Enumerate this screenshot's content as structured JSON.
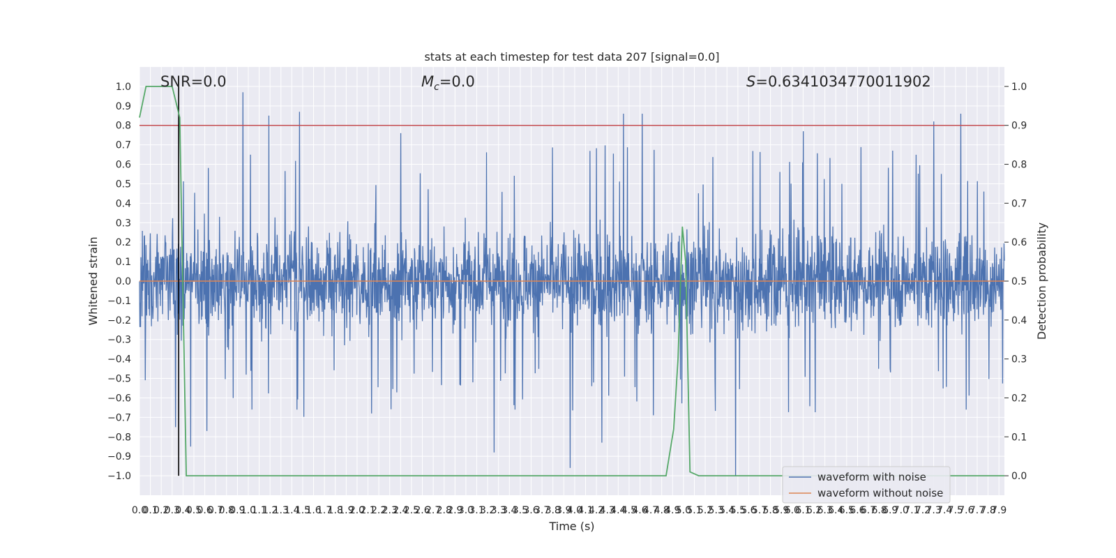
{
  "chart_data": {
    "type": "line",
    "title": "stats at each timestep for test data 207 [signal=0.0]",
    "xlabel": "Time (s)",
    "ylabel": "Whitened strain",
    "y2label": "Detection probability",
    "xlim": [
      0.0,
      7.95
    ],
    "ylim": [
      -1.1,
      1.1
    ],
    "y2lim": [
      -0.05,
      1.05
    ],
    "grid": true,
    "legend_placement": "lower-right",
    "x_ticks": [
      "0.0",
      "0.1",
      "0.2",
      "0.3",
      "0.4",
      "0.5",
      "0.6",
      "0.7",
      "0.8",
      "0.9",
      "1.0",
      "1.1",
      "1.2",
      "1.3",
      "1.4",
      "1.5",
      "1.6",
      "1.7",
      "1.8",
      "1.9",
      "2.0",
      "2.1",
      "2.2",
      "2.3",
      "2.4",
      "2.5",
      "2.6",
      "2.7",
      "2.8",
      "2.9",
      "3.0",
      "3.1",
      "3.2",
      "3.3",
      "3.4",
      "3.5",
      "3.6",
      "3.7",
      "3.8",
      "3.9",
      "4.0",
      "4.1",
      "4.2",
      "4.3",
      "4.4",
      "4.5",
      "4.6",
      "4.7",
      "4.8",
      "4.9",
      "5.0",
      "5.1",
      "5.2",
      "5.3",
      "5.4",
      "5.5",
      "5.6",
      "5.7",
      "5.8",
      "5.9",
      "6.0",
      "6.1",
      "6.2",
      "6.3",
      "6.4",
      "6.5",
      "6.6",
      "6.7",
      "6.8",
      "6.9",
      "7.0",
      "7.1",
      "7.2",
      "7.3",
      "7.4",
      "7.5",
      "7.6",
      "7.7",
      "7.8",
      "7.9"
    ],
    "y_ticks": [
      "1.0",
      "0.9",
      "0.8",
      "0.7",
      "0.6",
      "0.5",
      "0.4",
      "0.3",
      "0.2",
      "0.1",
      "0.0",
      "-0.1",
      "-0.2",
      "-0.3",
      "-0.4",
      "-0.5",
      "-0.6",
      "-0.7",
      "-0.8",
      "-0.9",
      "-1.0"
    ],
    "y2_ticks": [
      "1.0",
      "0.9",
      "0.8",
      "0.7",
      "0.6",
      "0.5",
      "0.4",
      "0.3",
      "0.2",
      "0.1",
      "0.0"
    ],
    "annotations": [
      {
        "key": "snr",
        "text": "SNR=0.0"
      },
      {
        "key": "mc",
        "text": "=0.0",
        "symbol": "M",
        "sub": "c"
      },
      {
        "key": "s",
        "text": "=0.6341034770011902",
        "symbol": "S"
      }
    ],
    "series": [
      {
        "name": "waveform with noise",
        "color": "#4c72b0",
        "axis": "left",
        "kind": "noise",
        "typical_range": [
          -0.42,
          0.38
        ],
        "spikes": [
          {
            "x": 0.95,
            "y": 0.97
          },
          {
            "x": 1.19,
            "y": 0.85
          },
          {
            "x": 1.47,
            "y": 0.87
          },
          {
            "x": 4.45,
            "y": 0.86
          },
          {
            "x": 4.62,
            "y": 0.86
          },
          {
            "x": 7.3,
            "y": 0.82
          },
          {
            "x": 7.55,
            "y": 0.86
          },
          {
            "x": 6.1,
            "y": 0.77
          },
          {
            "x": 2.4,
            "y": 0.76
          },
          {
            "x": 3.26,
            "y": -0.88
          },
          {
            "x": 3.96,
            "y": -0.96
          },
          {
            "x": 5.48,
            "y": -1.0
          },
          {
            "x": 4.25,
            "y": -0.83
          },
          {
            "x": 0.47,
            "y": -0.85
          },
          {
            "x": 0.33,
            "y": -0.75
          },
          {
            "x": 0.62,
            "y": -0.77
          },
          {
            "x": 7.6,
            "y": -0.66
          }
        ]
      },
      {
        "name": "waveform without noise",
        "color": "#dd8452",
        "axis": "left",
        "x": [
          0.0,
          7.95
        ],
        "y": [
          0.0,
          0.0
        ]
      },
      {
        "color": "#55a868",
        "axis": "right",
        "x": [
          0.0,
          0.06,
          0.3,
          0.37,
          0.43,
          4.84,
          4.91,
          4.95,
          4.99,
          5.02,
          5.06,
          5.14,
          7.95
        ],
        "y": [
          0.92,
          1.0,
          1.0,
          0.92,
          0.0,
          0.0,
          0.12,
          0.3,
          0.64,
          0.55,
          0.01,
          0.0,
          0.0
        ]
      }
    ],
    "threshold": {
      "axis": "right",
      "value": 0.9,
      "color": "#c44e52"
    },
    "marker_line": {
      "x": 0.36,
      "y_range": [
        -1.0,
        1.0
      ],
      "color": "#000000"
    }
  }
}
